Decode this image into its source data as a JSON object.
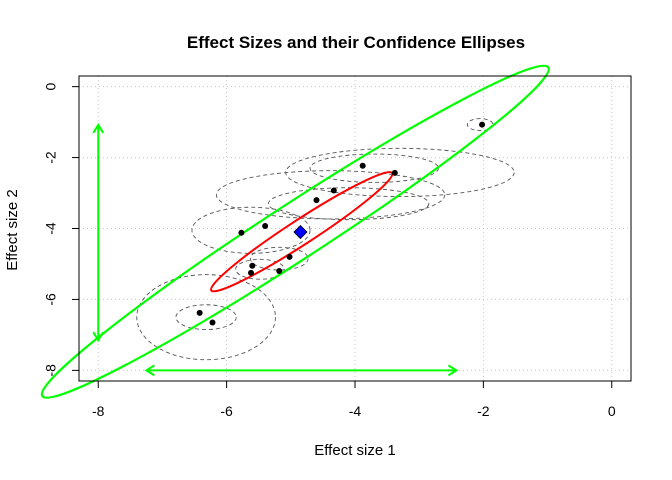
{
  "chart_data": {
    "type": "scatter",
    "title": "Effect Sizes and their Confidence Ellipses",
    "xlabel": "Effect size 1",
    "ylabel": "Effect size 2",
    "xlim": [
      -8.3,
      0.3
    ],
    "ylim": [
      -8.3,
      0.3
    ],
    "x_ticks": [
      -8,
      -6,
      -4,
      -2,
      0
    ],
    "y_ticks": [
      0,
      -2,
      -4,
      -6,
      -8
    ],
    "x_tick_labels": [
      "-8",
      "-6",
      "-4",
      "-2",
      "0"
    ],
    "y_tick_labels": [
      "0",
      "-2",
      "-4",
      "-6",
      "-8"
    ],
    "grid": true,
    "points": [
      {
        "x": -6.42,
        "y": -6.38
      },
      {
        "x": -6.22,
        "y": -6.65
      },
      {
        "x": -5.6,
        "y": -5.05
      },
      {
        "x": -5.62,
        "y": -5.25
      },
      {
        "x": -5.18,
        "y": -5.2
      },
      {
        "x": -5.02,
        "y": -4.8
      },
      {
        "x": -5.77,
        "y": -4.12
      },
      {
        "x": -5.4,
        "y": -3.93
      },
      {
        "x": -4.6,
        "y": -3.2
      },
      {
        "x": -4.33,
        "y": -2.93
      },
      {
        "x": -3.88,
        "y": -2.23
      },
      {
        "x": -3.38,
        "y": -2.43
      },
      {
        "x": -2.02,
        "y": -1.07
      }
    ],
    "study_ellipses": [
      {
        "cx": -6.32,
        "cy": -6.5,
        "rx": 0.47,
        "ry": 0.35,
        "angle": 0
      },
      {
        "cx": -6.32,
        "cy": -6.5,
        "rx": 1.08,
        "ry": 1.2,
        "angle": 0
      },
      {
        "cx": -5.48,
        "cy": -5.15,
        "rx": 0.38,
        "ry": 0.28,
        "angle": 0
      },
      {
        "cx": -5.18,
        "cy": -4.85,
        "rx": 0.45,
        "ry": 0.32,
        "angle": 0
      },
      {
        "cx": -5.62,
        "cy": -4.05,
        "rx": 0.92,
        "ry": 0.65,
        "angle": 0
      },
      {
        "cx": -4.38,
        "cy": -3.05,
        "rx": 1.78,
        "ry": 0.68,
        "angle": 0
      },
      {
        "cx": -4.1,
        "cy": -3.3,
        "rx": 1.25,
        "ry": 0.45,
        "angle": 0
      },
      {
        "cx": -3.3,
        "cy": -2.42,
        "rx": 1.78,
        "ry": 0.68,
        "angle": 0
      },
      {
        "cx": -3.7,
        "cy": -2.3,
        "rx": 1.0,
        "ry": 0.4,
        "angle": 0
      },
      {
        "cx": -2.05,
        "cy": -1.07,
        "rx": 0.2,
        "ry": 0.17,
        "angle": 0
      }
    ],
    "summary_point": {
      "x": -4.85,
      "y": -4.1,
      "color": "#0000ff"
    },
    "summary_ellipse": {
      "cx": -4.83,
      "cy": -4.09,
      "rx": 1.68,
      "ry": 0.35,
      "angle": 33,
      "color": "#ff0000"
    },
    "prediction_ellipse": {
      "cx": -4.93,
      "cy": -4.09,
      "rx": 4.7,
      "ry": 0.78,
      "angle": 33,
      "color": "#00ff00"
    },
    "prediction_x_range": {
      "from": -7.25,
      "to": -2.42,
      "y": -8.0,
      "color": "#00ff00"
    },
    "prediction_y_range": {
      "from": -1.08,
      "to": -7.15,
      "x": -8.0,
      "color": "#00ff00"
    }
  }
}
